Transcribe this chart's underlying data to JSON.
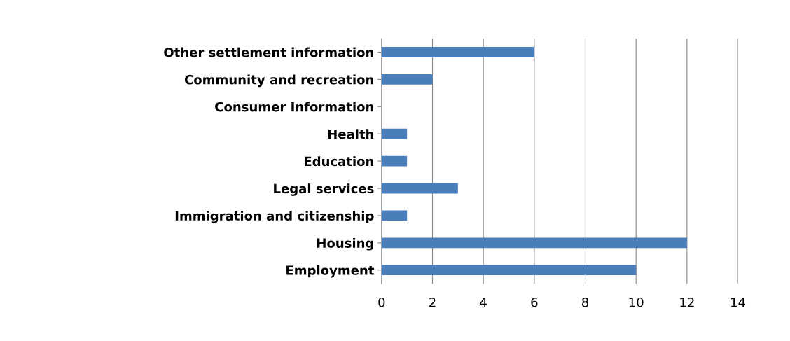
{
  "chart_data": {
    "type": "bar",
    "orientation": "horizontal",
    "categories": [
      "Other settlement information",
      "Community and recreation",
      "Consumer Information",
      "Health",
      "Education",
      "Legal services",
      "Immigration and citizenship",
      "Housing",
      "Employment"
    ],
    "values": [
      6,
      2,
      0,
      1,
      1,
      3,
      1,
      12,
      10
    ],
    "color": "#4a7ebb",
    "xlim": [
      0,
      14
    ],
    "xticks": [
      0,
      2,
      4,
      6,
      8,
      10,
      12,
      14
    ],
    "grid": "x"
  }
}
